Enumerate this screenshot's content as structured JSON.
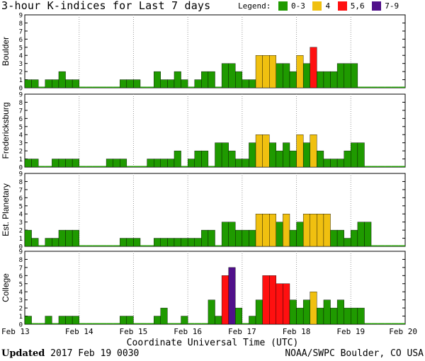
{
  "header": {
    "title": "3-hour K-indices for Last 7 days",
    "legend_label": "Legend:",
    "legend": [
      {
        "label": "0-3",
        "color": "#1f9a00"
      },
      {
        "label": "4",
        "color": "#f0c010"
      },
      {
        "label": "5,6",
        "color": "#ff1010"
      },
      {
        "label": "7-9",
        "color": "#50108a"
      }
    ]
  },
  "footer": {
    "updated_label": "Updated",
    "updated_value": "2017 Feb 19 0030",
    "credit": "NOAA/SWPC Boulder, CO USA"
  },
  "chart_data": {
    "type": "bar",
    "xlabel": "Coordinate Universal Time (UTC)",
    "x_ticks": [
      "Feb 13",
      "Feb 14",
      "Feb 15",
      "Feb 16",
      "Feb 17",
      "Feb 18",
      "Feb 19",
      "Feb 20"
    ],
    "ylim": [
      0,
      9
    ],
    "y_ticks": [
      "0",
      "1",
      "2",
      "3",
      "4",
      "5",
      "6",
      "7",
      "8",
      "9"
    ],
    "interval_hours": 3,
    "panels": [
      {
        "label": "Boulder",
        "values": [
          1,
          1,
          0,
          1,
          1,
          2,
          1,
          1,
          0,
          0,
          0,
          0,
          0,
          0,
          1,
          1,
          1,
          0,
          0,
          2,
          1,
          1,
          2,
          1,
          0,
          1,
          2,
          2,
          0,
          3,
          3,
          2,
          1,
          1,
          4,
          4,
          4,
          3,
          3,
          2,
          4,
          3,
          5,
          2,
          2,
          2,
          3,
          3,
          3,
          0,
          0,
          0,
          0,
          0,
          0,
          0,
          0
        ]
      },
      {
        "label": "Fredericksburg",
        "values": [
          1,
          1,
          0,
          0,
          1,
          1,
          1,
          1,
          0,
          0,
          0,
          0,
          1,
          1,
          1,
          0,
          0,
          0,
          1,
          1,
          1,
          1,
          2,
          0,
          1,
          2,
          2,
          0,
          3,
          3,
          2,
          1,
          1,
          3,
          4,
          4,
          3,
          2,
          3,
          2,
          4,
          3,
          4,
          2,
          1,
          1,
          1,
          2,
          3,
          3,
          0,
          0,
          0,
          0,
          0,
          0,
          0
        ]
      },
      {
        "label": "Est. Planetary",
        "values": [
          2,
          1,
          0,
          1,
          1,
          2,
          2,
          2,
          0,
          0,
          0,
          0,
          0,
          0,
          1,
          1,
          1,
          0,
          0,
          1,
          1,
          1,
          1,
          1,
          1,
          1,
          2,
          2,
          0,
          3,
          3,
          2,
          2,
          2,
          4,
          4,
          4,
          3,
          4,
          2,
          3,
          4,
          4,
          4,
          4,
          2,
          2,
          1,
          2,
          3,
          3,
          0,
          0,
          0,
          0,
          0,
          0
        ]
      },
      {
        "label": "College",
        "values": [
          1,
          0,
          0,
          1,
          0,
          1,
          1,
          1,
          0,
          0,
          0,
          0,
          0,
          0,
          1,
          1,
          0,
          0,
          0,
          1,
          2,
          0,
          0,
          1,
          0,
          0,
          0,
          3,
          1,
          6,
          7,
          2,
          0,
          1,
          3,
          6,
          6,
          5,
          5,
          3,
          2,
          3,
          4,
          2,
          3,
          2,
          3,
          2,
          2,
          2,
          0,
          0,
          0,
          0,
          0,
          0,
          0
        ]
      }
    ]
  }
}
